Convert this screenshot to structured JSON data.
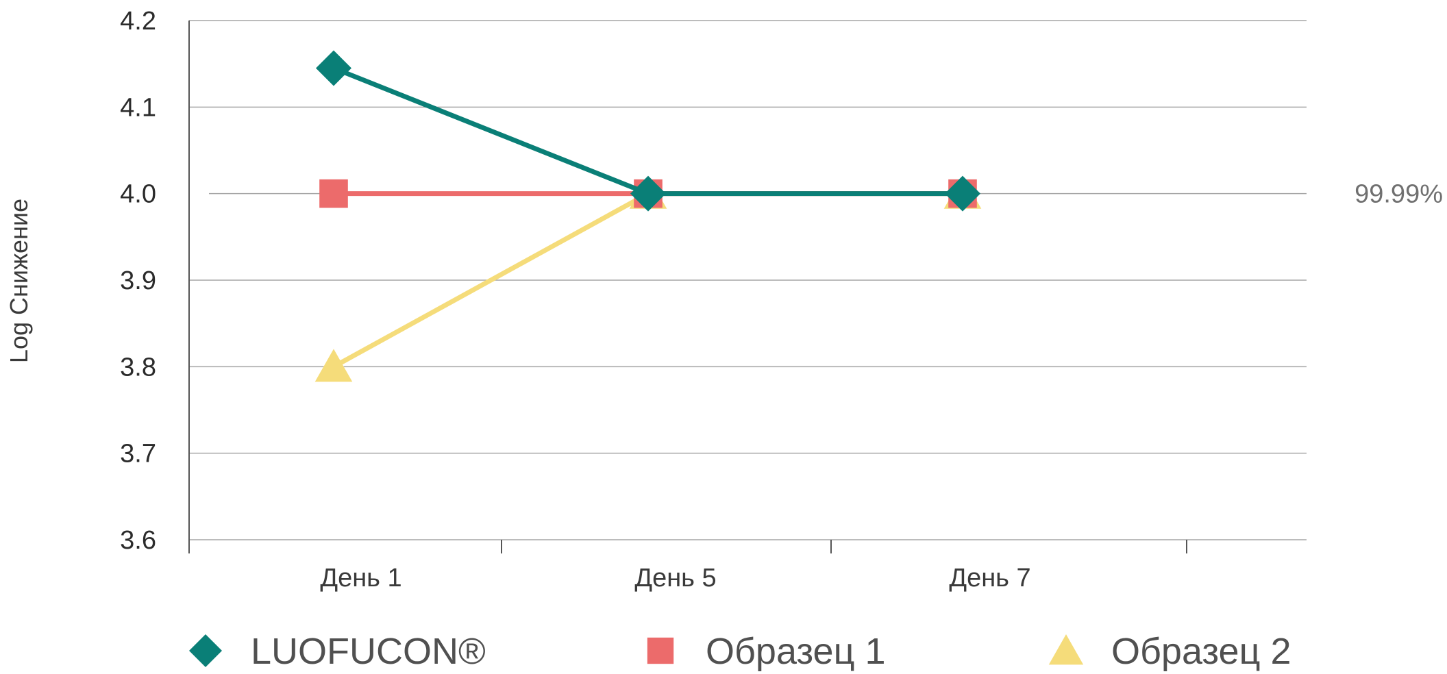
{
  "chart_data": {
    "type": "line",
    "ylabel": "Log Снижение",
    "xlabel": "",
    "ylim": [
      3.6,
      4.2
    ],
    "yticks": [
      "4.2",
      "4.1",
      "4.0",
      "3.9",
      "3.8",
      "3.7",
      "3.6"
    ],
    "categories": [
      "День 1",
      "День 5",
      "День 7"
    ],
    "grid": true,
    "legend_position": "bottom",
    "reference_line": {
      "y": 4.0,
      "label": "99.99%"
    },
    "series": [
      {
        "name": "LUOFUCON®",
        "marker": "diamond",
        "color": "#0a7f77",
        "values": [
          4.145,
          4.0,
          4.0
        ]
      },
      {
        "name": "Образец 1",
        "marker": "square",
        "color": "#ec6b6b",
        "values": [
          4.0,
          4.0,
          4.0
        ]
      },
      {
        "name": "Образец 2",
        "marker": "triangle",
        "color": "#f5dc7a",
        "values": [
          3.8,
          4.0,
          4.0
        ]
      }
    ]
  }
}
